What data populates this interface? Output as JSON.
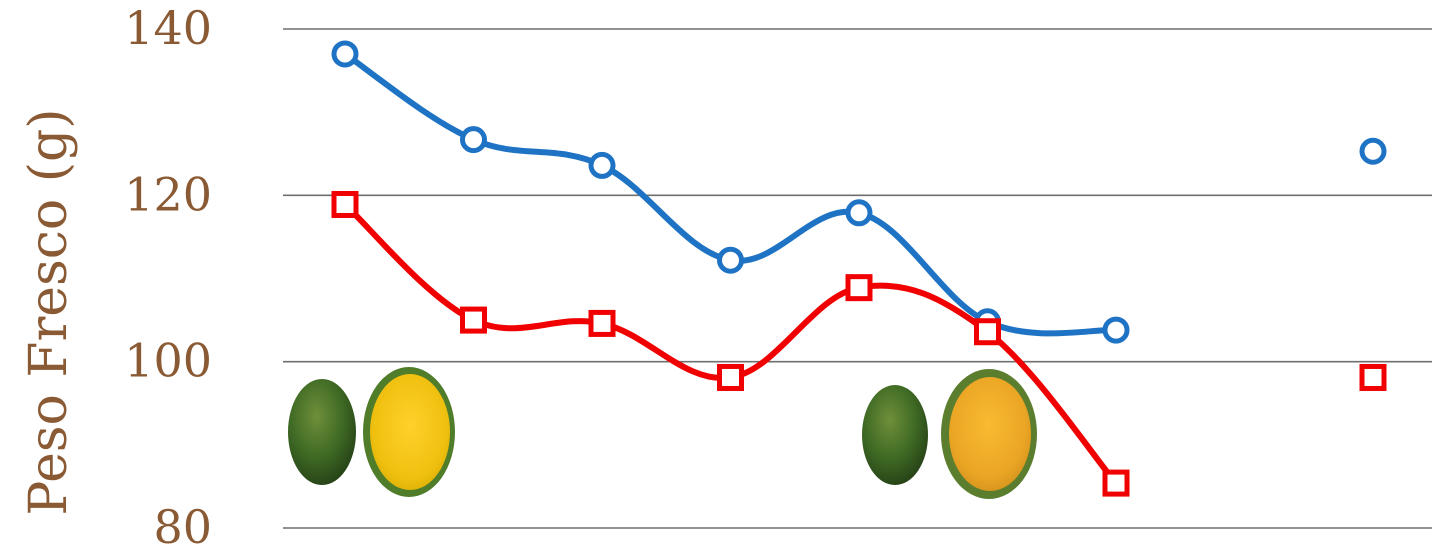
{
  "chart_data": {
    "type": "line",
    "ylabel": "Peso Fresco (g)",
    "xlabel": "",
    "ylim": [
      80,
      140
    ],
    "yticks": [
      80,
      100,
      120,
      140
    ],
    "grid": true,
    "x": [
      1,
      2,
      3,
      4,
      5,
      6,
      7,
      9
    ],
    "series": [
      {
        "color": "#1f73c4",
        "marker": "circle",
        "values": [
          137,
          126.7,
          123.6,
          112.2,
          117.9,
          104.8,
          103.8,
          125.3
        ],
        "connected_points": 7
      },
      {
        "color": "#f00000",
        "marker": "square",
        "values": [
          118.9,
          105,
          104.6,
          98.1,
          108.9,
          103.6,
          85.4,
          98.1
        ],
        "connected_points": 7
      }
    ],
    "images": [
      {
        "name": "green-mango-pair-image"
      },
      {
        "name": "ripe-mango-pair-image"
      }
    ]
  }
}
